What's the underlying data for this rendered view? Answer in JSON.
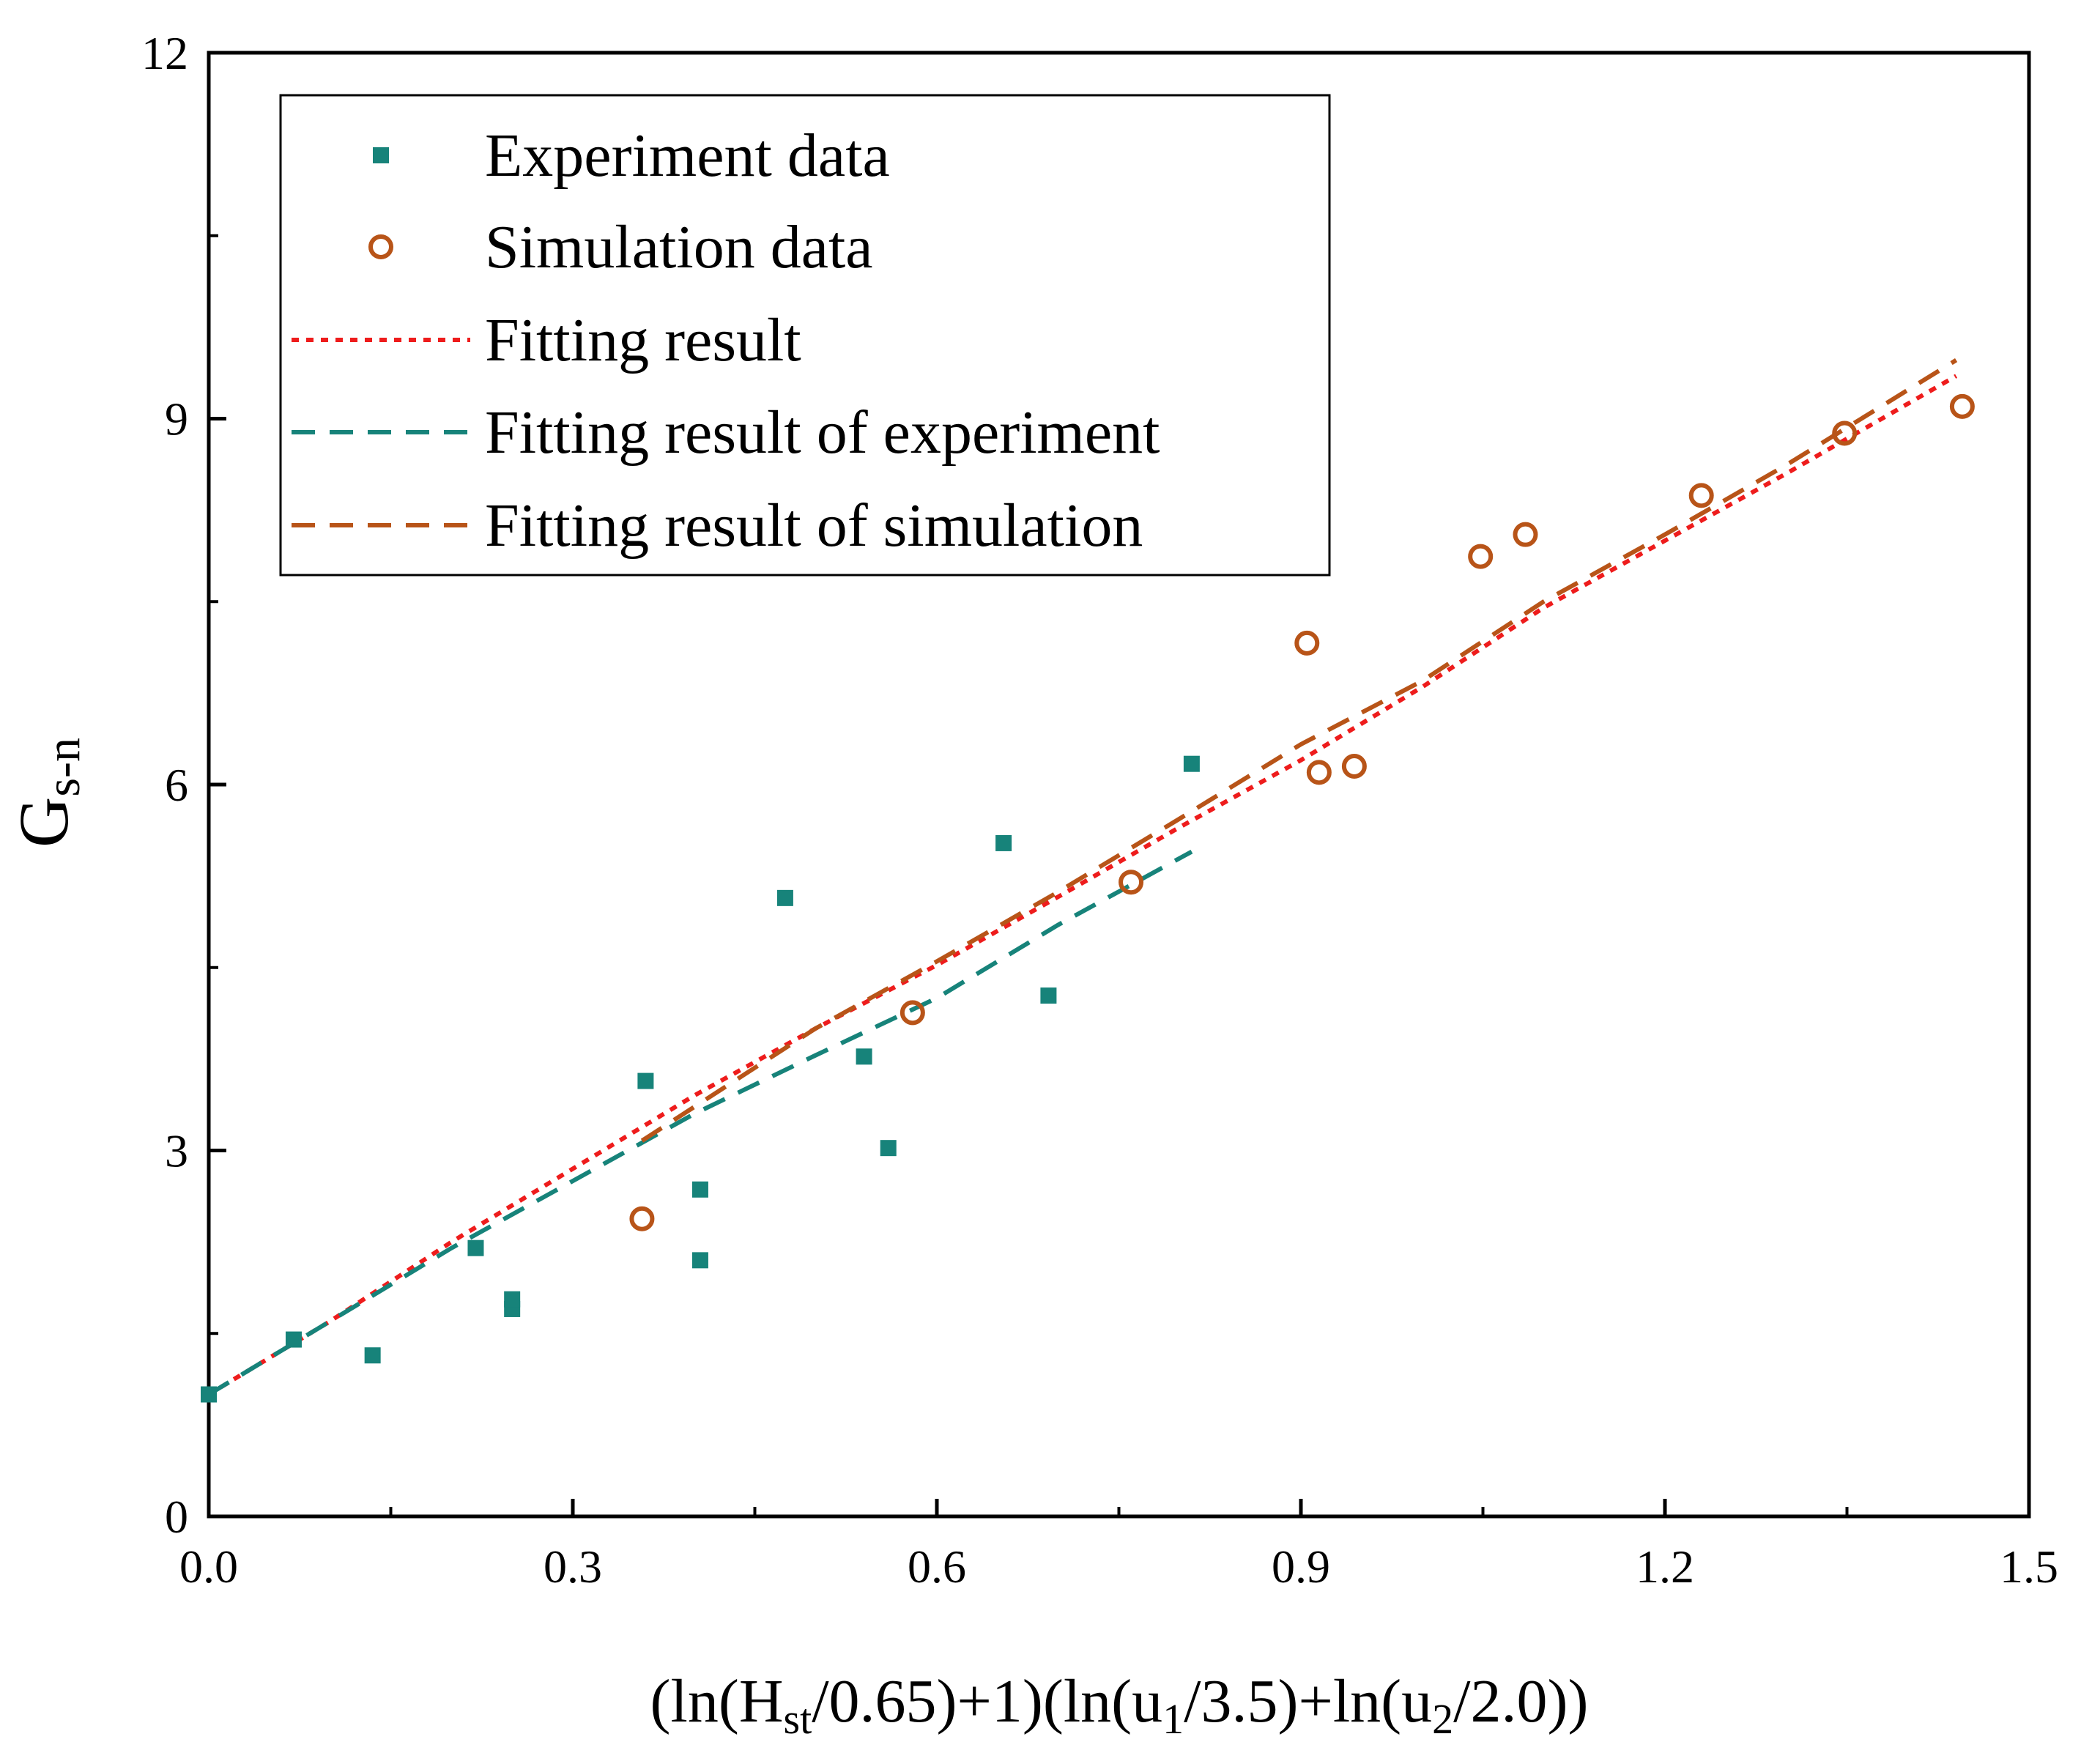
{
  "chart_data": {
    "type": "scatter",
    "xlabel": "(ln(H_st/0.65)+1)(ln(u_1/3.5)+ln(u_2/2.0))",
    "xlabel_parts": {
      "p1": "(ln(H",
      "s1": "st",
      "p2": "/0.65)+1)(ln(u",
      "s2": "1",
      "p3": "/3.5)+ln(u",
      "s3": "2",
      "p4": "/2.0))"
    },
    "ylabel": "G_s-n",
    "ylabel_parts": {
      "main": "G",
      "sub": "s-n"
    },
    "xlim": [
      0,
      1.5
    ],
    "ylim": [
      0,
      12
    ],
    "xticks": [
      0.0,
      0.3,
      0.6,
      0.9,
      1.2,
      1.5
    ],
    "xtick_labels": [
      "0.0",
      "0.3",
      "0.6",
      "0.9",
      "1.2",
      "1.5"
    ],
    "yticks": [
      0,
      3,
      6,
      9,
      12
    ],
    "ytick_labels": [
      "0",
      "3",
      "6",
      "9",
      "12"
    ],
    "legend_position": "top-left",
    "series": [
      {
        "name": "Experiment data",
        "kind": "scatter",
        "marker": "square",
        "color": "#17837a",
        "x": [
          0.0,
          0.07,
          0.135,
          0.22,
          0.25,
          0.25,
          0.36,
          0.405,
          0.405,
          0.475,
          0.54,
          0.56,
          0.655,
          0.692,
          0.81
        ],
        "y": [
          1.0,
          1.45,
          1.32,
          2.2,
          1.7,
          1.78,
          3.57,
          2.68,
          2.1,
          5.07,
          3.77,
          3.02,
          5.52,
          4.27,
          6.17
        ]
      },
      {
        "name": "Simulation data",
        "kind": "scatter",
        "marker": "open-circle",
        "color": "#b85418",
        "x": [
          0.357,
          0.58,
          0.76,
          0.905,
          0.915,
          0.944,
          1.048,
          1.085,
          1.23,
          1.348,
          1.445
        ],
        "y": [
          2.44,
          4.13,
          5.2,
          7.16,
          6.1,
          6.15,
          7.87,
          8.05,
          8.37,
          8.88,
          9.1
        ]
      },
      {
        "name": "Fitting result",
        "kind": "line",
        "dash": "dotted",
        "color": "#ee1c1c",
        "x": [
          0.0,
          0.1,
          0.2,
          0.3,
          0.4,
          0.5,
          0.6,
          0.7,
          0.8,
          0.9,
          1.0,
          1.1,
          1.2,
          1.3,
          1.44
        ],
        "y": [
          1.0,
          1.6,
          2.25,
          2.85,
          3.45,
          4.0,
          4.52,
          5.08,
          5.65,
          6.2,
          6.8,
          7.45,
          8.0,
          8.55,
          9.35
        ]
      },
      {
        "name": "Fitting result of experiment",
        "kind": "line",
        "dash": "dashed",
        "color": "#17837a",
        "x": [
          0.0,
          0.1,
          0.2,
          0.3,
          0.4,
          0.5,
          0.6,
          0.7,
          0.81
        ],
        "y": [
          1.0,
          1.6,
          2.2,
          2.75,
          3.3,
          3.78,
          4.25,
          4.85,
          5.45
        ]
      },
      {
        "name": "Fitting result of simulation",
        "kind": "line",
        "dash": "dashed",
        "color": "#b85418",
        "x": [
          0.357,
          0.5,
          0.6,
          0.7,
          0.8,
          0.9,
          1.0,
          1.1,
          1.2,
          1.3,
          1.44
        ],
        "y": [
          3.08,
          4.0,
          4.55,
          5.12,
          5.72,
          6.33,
          6.85,
          7.5,
          8.05,
          8.62,
          9.48
        ]
      }
    ]
  }
}
